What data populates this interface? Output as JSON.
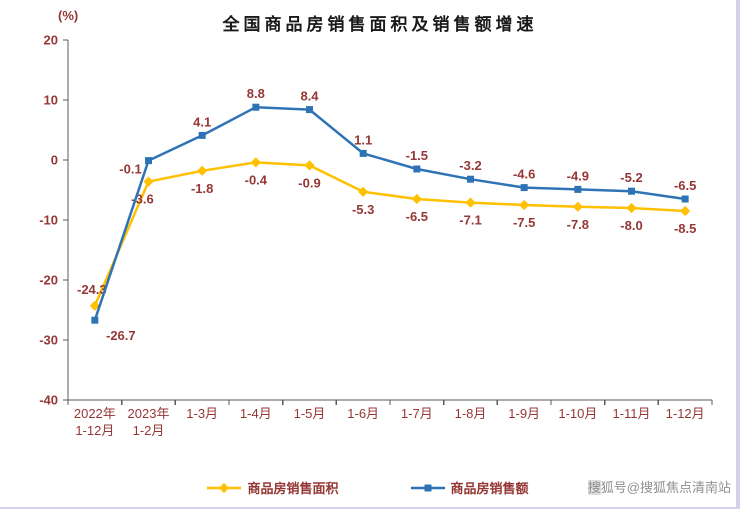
{
  "page": {
    "watermark": "搜狐号@搜狐焦点清南站"
  },
  "chart_data": {
    "type": "line",
    "title": "全国商品房销售面积及销售额增速",
    "ylabel": "(%)",
    "xlabel": "",
    "ylim": [
      -40,
      20
    ],
    "yticks": [
      20,
      10,
      0,
      -10,
      -20,
      -30,
      -40
    ],
    "grid": false,
    "legend_position": "bottom",
    "categories": [
      "2022年\n1-12月",
      "2023年\n1-2月",
      "1-3月",
      "1-4月",
      "1-5月",
      "1-6月",
      "1-7月",
      "1-8月",
      "1-9月",
      "1-10月",
      "1-11月",
      "1-12月"
    ],
    "series": [
      {
        "id": "sales-area",
        "name": "商品房销售面积",
        "color": "#FFC000",
        "marker": "diamond",
        "values": [
          -24.3,
          -3.6,
          -1.8,
          -0.4,
          -0.9,
          -5.3,
          -6.5,
          -7.1,
          -7.5,
          -7.8,
          -8.0,
          -8.5
        ],
        "labels": [
          "-24.3",
          "-3.6",
          "-1.8",
          "-0.4",
          "-0.9",
          "-5.3",
          "-6.5",
          "-7.1",
          "-7.5",
          "-7.8",
          "-8.0",
          "-8.5"
        ]
      },
      {
        "id": "sales-amount",
        "name": "商品房销售额",
        "color": "#2E74B5",
        "marker": "square",
        "values": [
          -26.7,
          -0.1,
          4.1,
          8.8,
          8.4,
          1.1,
          -1.5,
          -3.2,
          -4.6,
          -4.9,
          -5.2,
          -6.5
        ],
        "labels": [
          "-26.7",
          "-0.1",
          "4.1",
          "8.8",
          "8.4",
          "1.1",
          "-1.5",
          "-3.2",
          "-4.6",
          "-4.9",
          "-5.2",
          "-6.5"
        ]
      }
    ],
    "colors": {
      "text": "#953735",
      "axis": "#595959",
      "title": "#1a1a1a"
    }
  }
}
